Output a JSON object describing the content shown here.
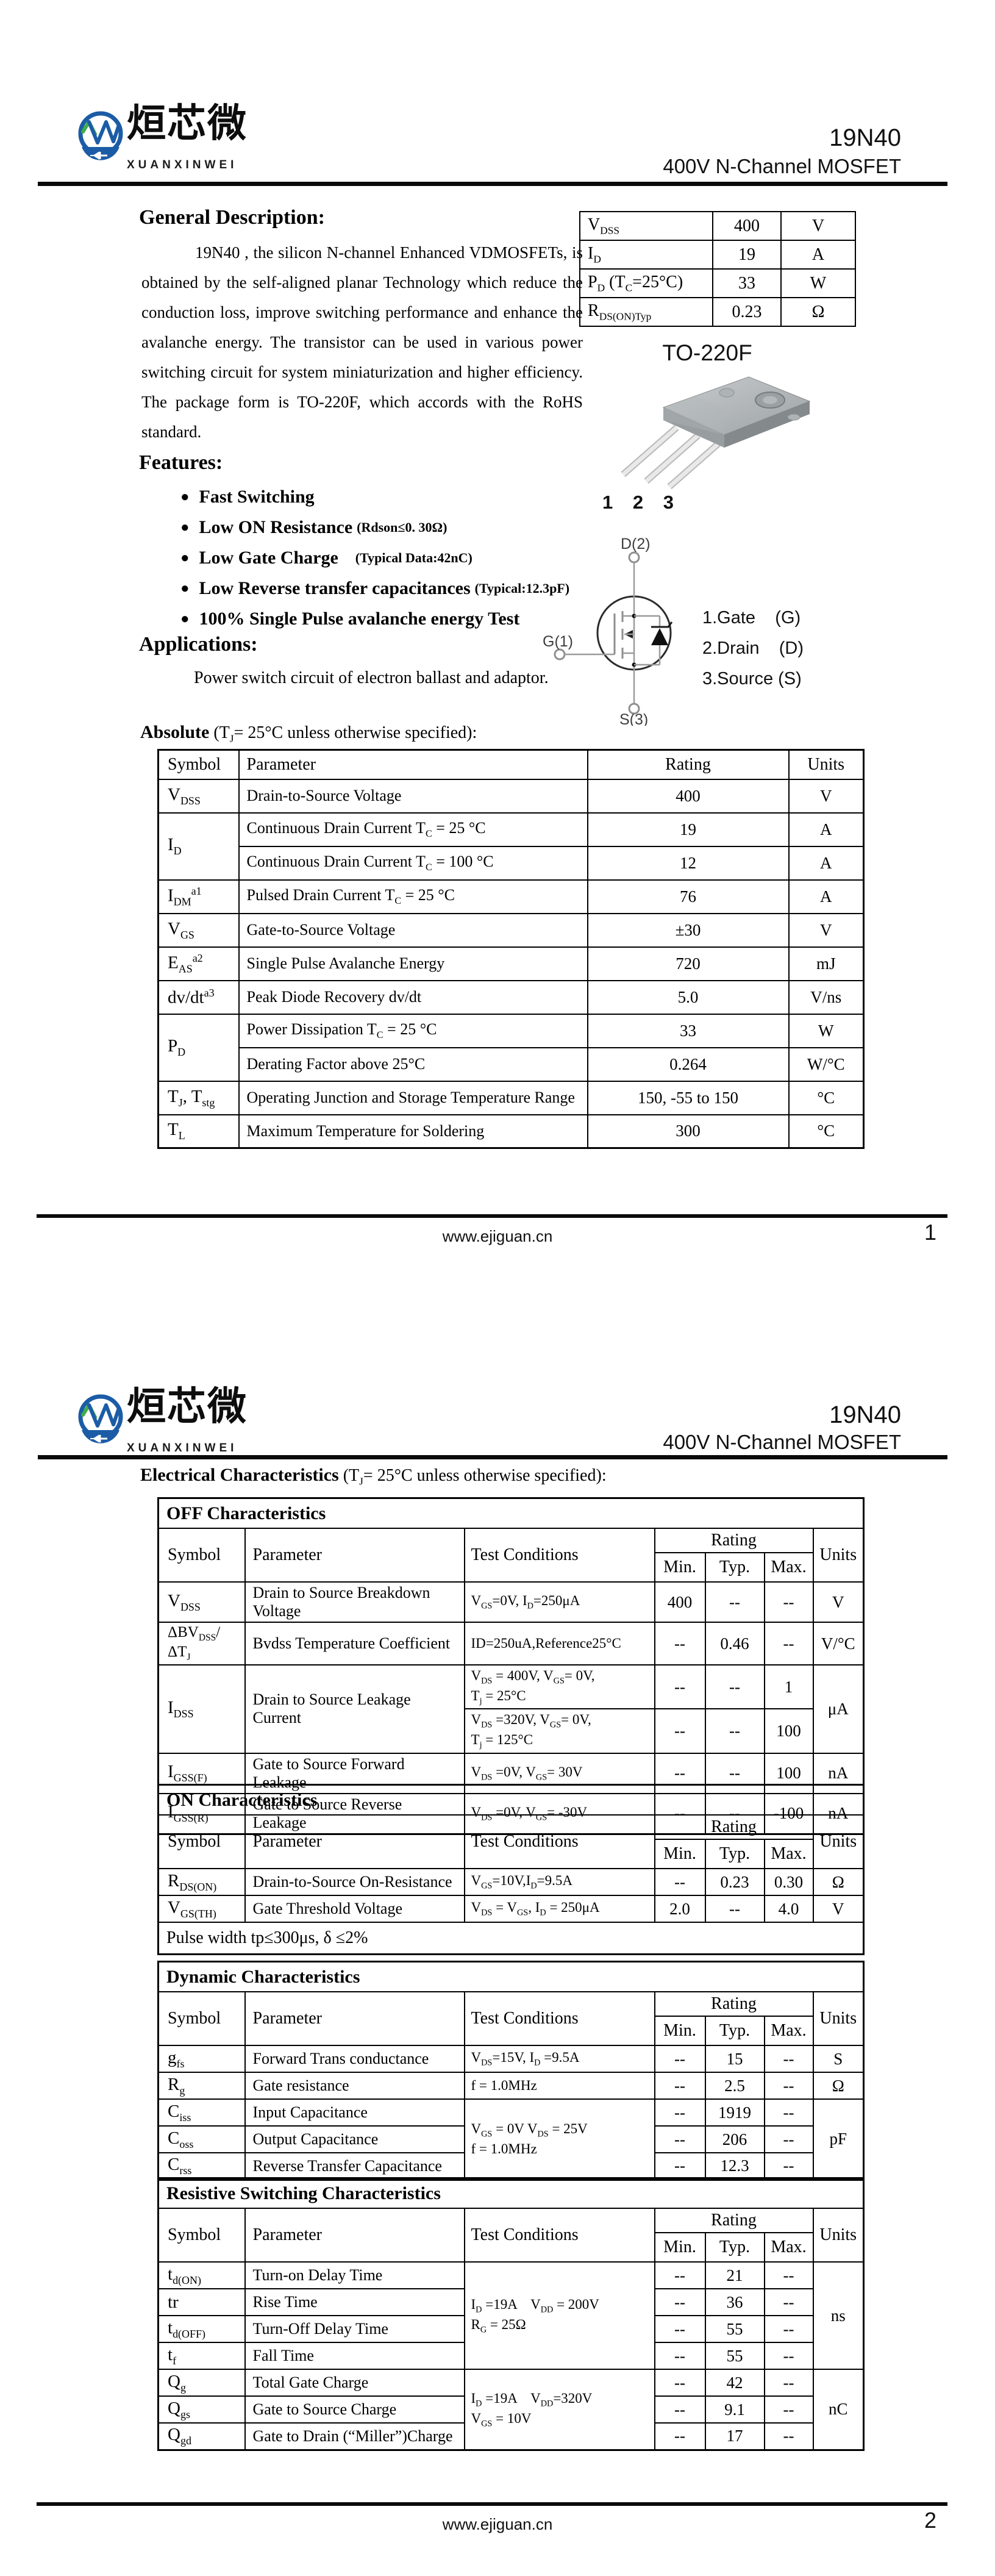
{
  "brand": {
    "cn": "烜芯微",
    "en": "XUANXINWEI",
    "monogram": "XXW"
  },
  "header": {
    "part": "19N40",
    "subtitle": "400V N-Channel MOSFET"
  },
  "footer": {
    "url": "www.ejiguan.cn",
    "page1": "1",
    "page2": "2"
  },
  "bullet": "●",
  "colors": {
    "logo_blue": "#1c5ca6",
    "logo_green": "#3fae49",
    "ink": "#000000"
  },
  "cols": {
    "symbol": "Symbol",
    "parameter": "Parameter",
    "test": "Test Conditions",
    "rating": "Rating",
    "min": "Min.",
    "typ": "Typ.",
    "max": "Max.",
    "units": "Units"
  },
  "p1": {
    "gd_head": "General Description:",
    "gd_body": "19N40 , the silicon N-channel Enhanced VDMOSFETs, is obtained by the self-aligned planar Technology which reduce the conduction loss, improve switching performance and enhance the avalanche energy. The transistor can be used in various power switching circuit for system miniaturization and higher efficiency. The package form is TO-220F, which accords with the RoHS standard.",
    "quick": {
      "r1": {
        "s": "V~DSS~",
        "v": "400",
        "u": "V"
      },
      "r2": {
        "s": "I~D~",
        "v": "19",
        "u": "A"
      },
      "r3": {
        "s": "P~D~ (T~C~=25°C)",
        "v": "33",
        "u": "W"
      },
      "r4": {
        "s": "R~DS(ON)Typ~",
        "v": "0.23",
        "u": "Ω"
      }
    },
    "pkg": {
      "name": "TO-220F",
      "pins": "1 2 3",
      "d": "D(2)",
      "g": "G(1)",
      "s": "S(3)",
      "leg1": "1.Gate    (G)",
      "leg2": "2.Drain    (D)",
      "leg3": "3.Source (S)"
    },
    "feat_head": "Features:",
    "features": [
      {
        "main": "Fast Switching",
        "note": ""
      },
      {
        "main": "Low ON Resistance",
        "note": "(Rdson≤0. 30Ω)"
      },
      {
        "main": "Low Gate Charge",
        "note": "(Typical Data:42nC)"
      },
      {
        "main": "Low Reverse transfer capacitances",
        "note": "(Typical:12.3pF)"
      },
      {
        "main": "100% Single Pulse avalanche energy Test",
        "note": ""
      }
    ],
    "app_head": "Applications:",
    "app_body": "Power switch circuit of electron ballast and adaptor.",
    "abs_head_b": "Absolute",
    "abs_head_r": " (T~J~= 25°C  unless otherwise specified):",
    "abs": {
      "vdss": {
        "s": "V~DSS~",
        "p": "Drain-to-Source Voltage",
        "r": "400",
        "u": "V"
      },
      "id": {
        "s": "I~D~",
        "p1": "Continuous Drain Current T~C~ = 25 °C",
        "r1": "19",
        "u1": "A",
        "p2": "Continuous Drain Current T~C~ = 100 °C",
        "r2": "12",
        "u2": "A"
      },
      "idm": {
        "s": "I~DM~^a1^",
        "p": "Pulsed Drain Current T~C~ = 25 °C",
        "r": "76",
        "u": "A"
      },
      "vgs": {
        "s": "V~GS~",
        "p": "Gate-to-Source Voltage",
        "r": "±30",
        "u": "V"
      },
      "eas": {
        "s": "E~AS~^a2^",
        "p": "Single Pulse Avalanche Energy",
        "r": "720",
        "u": "mJ"
      },
      "dvdt": {
        "s": "dv/dt^a3^",
        "p": "Peak Diode Recovery dv/dt",
        "r": "5.0",
        "u": "V/ns"
      },
      "pd": {
        "s": "P~D~",
        "p1": "Power Dissipation T~C~ = 25 °C",
        "r1": "33",
        "u1": "W",
        "p2": "Derating Factor above 25°C",
        "r2": "0.264",
        "u2": "W/°C"
      },
      "tj": {
        "s": "T~J~,  T~stg~",
        "p": "Operating Junction and Storage Temperature Range",
        "r": "150, -55 to 150",
        "u": "°C"
      },
      "tl": {
        "s": "T~L~",
        "p": "Maximum Temperature for Soldering",
        "r": "300",
        "u": "°C"
      }
    }
  },
  "p2": {
    "ec_head_b": "Electrical Characteristics",
    "ec_head_r": " (T~J~= 25°C  unless otherwise specified):",
    "off": {
      "title": "OFF Characteristics",
      "vdss": {
        "s": "V~DSS~",
        "p": "Drain to Source Breakdown Voltage",
        "t": "V~GS~=0V, I~D~=250μA",
        "min": "400",
        "typ": "--",
        "max": "--",
        "u": "V"
      },
      "bvdss": {
        "s": "ΔBV~DSS~/ΔT~J~",
        "p": "Bvdss Temperature Coefficient",
        "t": "ID=250uA,Reference25°C",
        "min": "--",
        "typ": "0.46",
        "max": "--",
        "u": "V/°C"
      },
      "idss": {
        "s": "I~DSS~",
        "p": "Drain to Source Leakage Current",
        "t1": "V~DS~ = 400V, V~GS~= 0V,\nT~j~ = 25°C",
        "min1": "--",
        "typ1": "--",
        "max1": "1",
        "t2": "V~DS~ =320V, V~GS~= 0V,\nT~j~ = 125°C",
        "min2": "--",
        "typ2": "--",
        "max2": "100",
        "u": "μA"
      },
      "igssf": {
        "s": "I~GSS(F)~",
        "p": "Gate to Source Forward Leakage",
        "t": "V~DS~ =0V, V~GS~= 30V",
        "min": "--",
        "typ": "--",
        "max": "100",
        "u": "nA"
      },
      "igssr": {
        "s": "I~GSS(R)~",
        "p": "Gate to Source Reverse Leakage",
        "t": "V~DS~ =0V, V~GS~= -30V",
        "min": "--",
        "typ": "--",
        "max": "-100",
        "u": "nA"
      }
    },
    "on": {
      "title": "ON Characteristics",
      "rdson": {
        "s": "R~DS(ON)~",
        "p": "Drain-to-Source On-Resistance",
        "t": "V~GS~=10V,I~D~=9.5A",
        "min": "--",
        "typ": "0.23",
        "max": "0.30",
        "u": "Ω"
      },
      "vgsth": {
        "s": "V~GS(TH)~",
        "p": "Gate Threshold Voltage",
        "t": "V~DS~ = V~GS~, I~D~ = 250μA",
        "min": "2.0",
        "typ": "--",
        "max": "4.0",
        "u": "V"
      },
      "note": "Pulse width tp≤300μs, δ ≤2%"
    },
    "dyn": {
      "title": "Dynamic Characteristics",
      "gfs": {
        "s": "g~fs~",
        "p": "Forward Trans conductance",
        "t": "V~DS~=15V, I~D~ =9.5A",
        "min": "--",
        "typ": "15",
        "max": "--",
        "u": "S"
      },
      "rg": {
        "s": "R~g~",
        "p": "Gate resistance",
        "t": "f = 1.0MHz",
        "min": "--",
        "typ": "2.5",
        "max": "--",
        "u": "Ω"
      },
      "cap_t": "V~GS~ = 0V V~DS~ = 25V\nf = 1.0MHz",
      "cap_u": "pF",
      "ciss": {
        "s": "C~iss~",
        "p": "Input Capacitance",
        "min": "--",
        "typ": "1919",
        "max": "--"
      },
      "coss": {
        "s": "C~oss~",
        "p": "Output Capacitance",
        "min": "--",
        "typ": "206",
        "max": "--"
      },
      "crss": {
        "s": "C~rss~",
        "p": "Reverse Transfer Capacitance",
        "min": "--",
        "typ": "12.3",
        "max": "--"
      }
    },
    "res": {
      "title": "Resistive Switching Characteristics",
      "sw_t": "I~D~ =19A    V~DD~ = 200V\nR~G~ = 25Ω",
      "sw_u": "ns",
      "tdon": {
        "s": "t~d(ON)~",
        "p": "Turn-on Delay Time",
        "min": "--",
        "typ": "21",
        "max": "--"
      },
      "tr": {
        "s": "tr",
        "p": "Rise Time",
        "min": "--",
        "typ": "36",
        "max": "--"
      },
      "tdoff": {
        "s": "t~d(OFF)~",
        "p": "Turn-Off Delay Time",
        "min": "--",
        "typ": "55",
        "max": "--"
      },
      "tf": {
        "s": "t~f~",
        "p": "Fall Time",
        "min": "--",
        "typ": "55",
        "max": "--"
      },
      "q_t": "I~D~ =19A    V~DD~=320V\nV~GS~ = 10V",
      "q_u": "nC",
      "qg": {
        "s": "Q~g~",
        "p": "Total Gate Charge",
        "min": "--",
        "typ": "42",
        "max": "--"
      },
      "qgs": {
        "s": "Q~gs~",
        "p": "Gate to Source Charge",
        "min": "--",
        "typ": "9.1",
        "max": "--"
      },
      "qgd": {
        "s": "Q~gd~",
        "p": "Gate to Drain (“Miller”)Charge",
        "min": "--",
        "typ": "17",
        "max": "--"
      }
    }
  }
}
